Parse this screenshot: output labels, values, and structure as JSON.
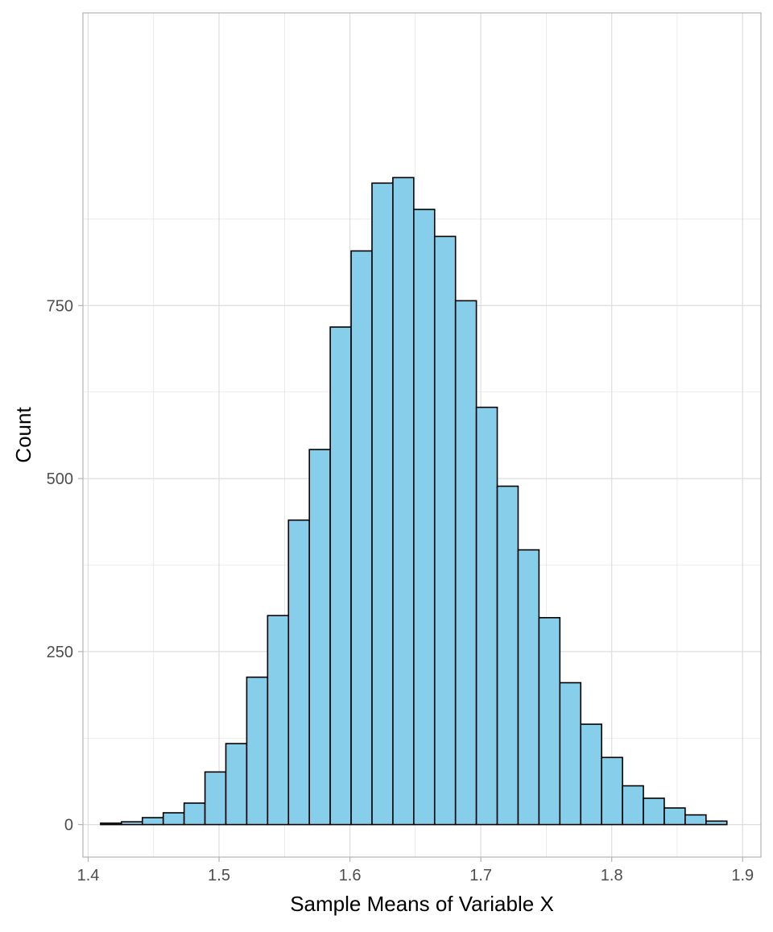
{
  "chart_data": {
    "type": "bar",
    "subtype": "histogram",
    "title": "",
    "xlabel": "Sample Means of Variable X",
    "ylabel": "Count",
    "xlim": [
      1.396,
      1.914
    ],
    "ylim": [
      -47,
      1173
    ],
    "x_ticks": [
      1.4,
      1.5,
      1.6,
      1.7,
      1.8,
      1.9
    ],
    "x_tick_labels": [
      "1.4",
      "1.5",
      "1.6",
      "1.7",
      "1.8",
      "1.9"
    ],
    "y_ticks": [
      0,
      250,
      500,
      750
    ],
    "y_tick_labels": [
      "0",
      "250",
      "500",
      "750"
    ],
    "x_minor_ticks": [
      1.45,
      1.55,
      1.65,
      1.75,
      1.85
    ],
    "y_minor_ticks": [
      125,
      375,
      625,
      875
    ],
    "grid": true,
    "legend": "none",
    "bin_start": 1.4095,
    "bin_width": 0.01595,
    "values": [
      2,
      4,
      10,
      17,
      31,
      76,
      117,
      213,
      302,
      440,
      542,
      719,
      829,
      927,
      935,
      889,
      850,
      757,
      603,
      489,
      397,
      299,
      205,
      145,
      97,
      56,
      38,
      24,
      14,
      5
    ],
    "colors": {
      "fill": "#87ceeb",
      "stroke": "#000000",
      "grid": "#dedede",
      "panel_border": "#b3b3b3"
    }
  }
}
